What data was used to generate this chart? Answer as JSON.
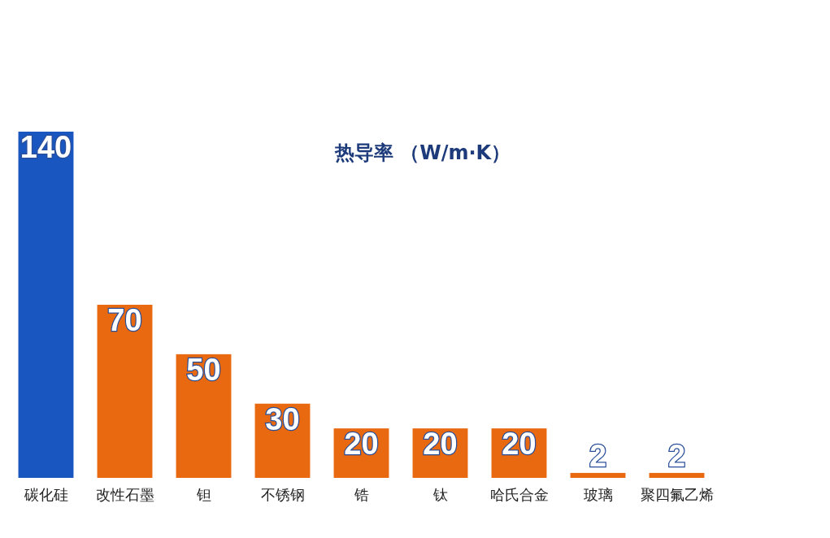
{
  "chart_data": {
    "type": "bar",
    "title": "热导率 （W/m·K）",
    "categories": [
      "碳化硅",
      "改性石墨",
      "钽",
      "不锈钢",
      "锆",
      "钛",
      "哈氏合金",
      "玻璃",
      "聚四氟乙烯"
    ],
    "values": [
      140,
      70,
      50,
      30,
      20,
      20,
      20,
      2,
      2
    ],
    "colors": [
      "#1a56c0",
      "#e8690f",
      "#e8690f",
      "#e8690f",
      "#e8690f",
      "#e8690f",
      "#e8690f",
      "#e8690f",
      "#e8690f"
    ],
    "data_labels": true
  }
}
